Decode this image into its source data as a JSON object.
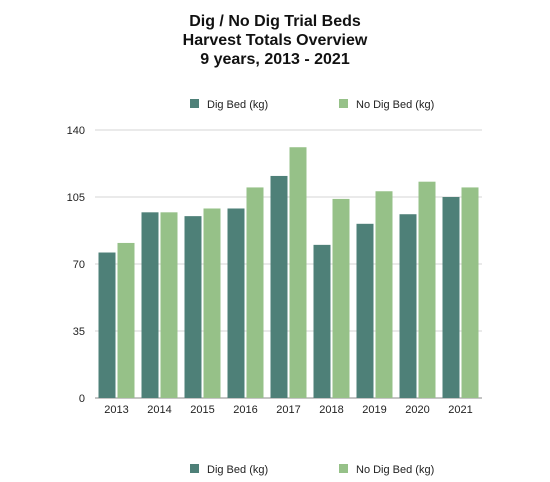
{
  "chart_data": {
    "type": "bar",
    "title": [
      "Dig / No Dig Trial Beds",
      "Harvest Totals Overview",
      "9 years, 2013 - 2021"
    ],
    "categories": [
      "2013",
      "2014",
      "2015",
      "2016",
      "2017",
      "2018",
      "2019",
      "2020",
      "2021"
    ],
    "series": [
      {
        "name": "Dig Bed (kg)",
        "color": "#4e8078",
        "values": [
          76,
          97,
          95,
          99,
          116,
          80,
          91,
          96,
          105
        ]
      },
      {
        "name": "No Dig Bed (kg)",
        "color": "#96c188",
        "values": [
          81,
          97,
          99,
          110,
          131,
          104,
          108,
          113,
          110
        ]
      }
    ],
    "ylim": [
      0,
      140
    ],
    "yticks": [
      "0",
      "35",
      "70",
      "105",
      "140"
    ],
    "grid": true,
    "legend": [
      "top",
      "bottom"
    ]
  }
}
